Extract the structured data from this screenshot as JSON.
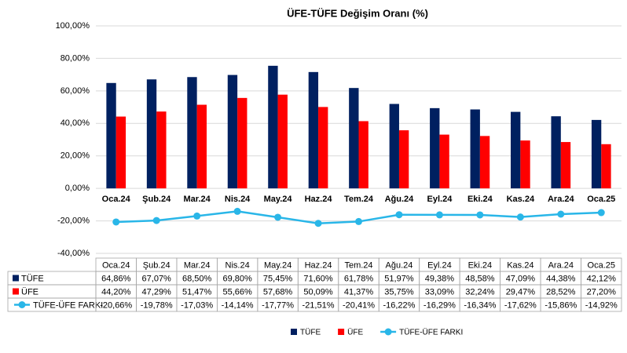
{
  "chart_data": {
    "type": "bar",
    "title": "ÜFE-TÜFE Değişim Oranı (%)",
    "categories": [
      "Oca.24",
      "Şub.24",
      "Mar.24",
      "Nis.24",
      "May.24",
      "Haz.24",
      "Tem.24",
      "Ağu.24",
      "Eyl.24",
      "Eki.24",
      "Kas.24",
      "Ara.24",
      "Oca.25"
    ],
    "series": [
      {
        "name": "TÜFE",
        "type": "bar",
        "color": "#002060",
        "values": [
          64.86,
          67.07,
          68.5,
          69.8,
          75.45,
          71.6,
          61.78,
          51.97,
          49.38,
          48.58,
          47.09,
          44.38,
          42.12
        ],
        "value_labels": [
          "64,86%",
          "67,07%",
          "68,50%",
          "69,80%",
          "75,45%",
          "71,60%",
          "61,78%",
          "51,97%",
          "49,38%",
          "48,58%",
          "47,09%",
          "44,38%",
          "42,12%"
        ]
      },
      {
        "name": "ÜFE",
        "type": "bar",
        "color": "#ff0000",
        "values": [
          44.2,
          47.29,
          51.47,
          55.66,
          57.68,
          50.09,
          41.37,
          35.75,
          33.09,
          32.24,
          29.47,
          28.52,
          27.2
        ],
        "value_labels": [
          "44,20%",
          "47,29%",
          "51,47%",
          "55,66%",
          "57,68%",
          "50,09%",
          "41,37%",
          "35,75%",
          "33,09%",
          "32,24%",
          "29,47%",
          "28,52%",
          "27,20%"
        ]
      },
      {
        "name": "TÜFE-ÜFE FARKI",
        "type": "line",
        "color": "#29b6e8",
        "values": [
          -20.66,
          -19.78,
          -17.03,
          -14.14,
          -17.77,
          -21.51,
          -20.41,
          -16.22,
          -16.29,
          -16.34,
          -17.62,
          -15.86,
          -14.92
        ],
        "value_labels": [
          "-20,66%",
          "-19,78%",
          "-17,03%",
          "-14,14%",
          "-17,77%",
          "-21,51%",
          "-20,41%",
          "-16,22%",
          "-16,29%",
          "-16,34%",
          "-17,62%",
          "-15,86%",
          "-14,92%"
        ]
      }
    ],
    "ylim": [
      -40,
      100
    ],
    "yticks": [
      {
        "value": -40,
        "label": "-40,00%"
      },
      {
        "value": -20,
        "label": "-20,00%"
      },
      {
        "value": 0,
        "label": "0,00%"
      },
      {
        "value": 20,
        "label": "20,00%"
      },
      {
        "value": 40,
        "label": "40,00%"
      },
      {
        "value": 60,
        "label": "60,00%"
      },
      {
        "value": 80,
        "label": "80,00%"
      },
      {
        "value": 100,
        "label": "100,00%"
      }
    ],
    "grid": true
  }
}
